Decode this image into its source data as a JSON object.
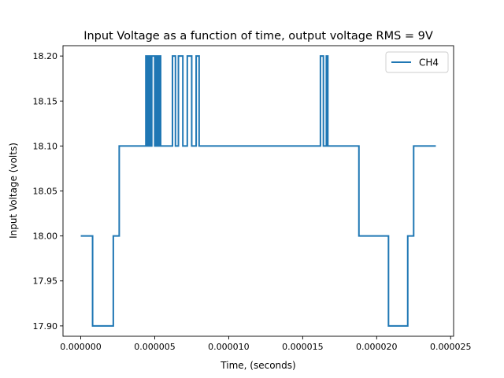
{
  "chart_data": {
    "type": "line",
    "title": "Input Voltage as a function of time, output voltage RMS = 9V",
    "xlabel": "Time, (seconds)",
    "ylabel": "Input Voltage (volts)",
    "xlim": [
      -1.2e-06,
      2.52e-05
    ],
    "ylim": [
      17.8885,
      18.2115
    ],
    "x_ticks": [
      0,
      5e-06,
      1e-05,
      1.5e-05,
      2e-05,
      2.5e-05
    ],
    "x_tick_labels": [
      "0.000000",
      "0.000005",
      "0.000010",
      "0.000015",
      "0.000020",
      "0.000025"
    ],
    "y_ticks": [
      17.9,
      17.95,
      18.0,
      18.05,
      18.1,
      18.15,
      18.2
    ],
    "y_tick_labels": [
      "17.90",
      "17.95",
      "18.00",
      "18.05",
      "18.10",
      "18.15",
      "18.20"
    ],
    "grid": false,
    "legend_position": "top-right",
    "series": [
      {
        "name": "CH4",
        "color": "#1f77b4",
        "x": [
          0,
          8e-07,
          8e-07,
          2.2e-06,
          2.2e-06,
          2.6e-06,
          2.6e-06,
          4.4e-06,
          4.4e-06,
          4.5e-06,
          4.5e-06,
          4.6e-06,
          4.6e-06,
          4.7e-06,
          4.7e-06,
          4.8e-06,
          4.8e-06,
          5e-06,
          5e-06,
          5.1e-06,
          5.1e-06,
          5.2e-06,
          5.2e-06,
          5.3e-06,
          5.3e-06,
          5.4e-06,
          5.4e-06,
          6.2e-06,
          6.2e-06,
          6.4e-06,
          6.4e-06,
          6.6e-06,
          6.6e-06,
          6.9e-06,
          6.9e-06,
          7.2e-06,
          7.2e-06,
          7.5e-06,
          7.5e-06,
          7.8e-06,
          7.8e-06,
          8e-06,
          8e-06,
          1.62e-05,
          1.62e-05,
          1.64e-05,
          1.64e-05,
          1.66e-05,
          1.66e-05,
          1.67e-05,
          1.67e-05,
          1.68e-05,
          1.68e-05,
          1.88e-05,
          1.88e-05,
          2.08e-05,
          2.08e-05,
          2.21e-05,
          2.21e-05,
          2.25e-05,
          2.25e-05,
          2.4e-05
        ],
        "y": [
          18.0,
          18.0,
          17.9,
          17.9,
          18.0,
          18.0,
          18.1,
          18.1,
          18.2,
          18.2,
          18.1,
          18.1,
          18.2,
          18.2,
          18.1,
          18.1,
          18.2,
          18.2,
          18.1,
          18.1,
          18.2,
          18.2,
          18.1,
          18.1,
          18.2,
          18.2,
          18.1,
          18.1,
          18.2,
          18.2,
          18.1,
          18.1,
          18.2,
          18.2,
          18.1,
          18.1,
          18.2,
          18.2,
          18.1,
          18.1,
          18.2,
          18.2,
          18.1,
          18.1,
          18.2,
          18.2,
          18.1,
          18.1,
          18.2,
          18.2,
          18.1,
          18.1,
          18.1,
          18.1,
          18.0,
          18.0,
          17.9,
          17.9,
          18.0,
          18.0,
          18.1,
          18.1
        ]
      }
    ]
  }
}
